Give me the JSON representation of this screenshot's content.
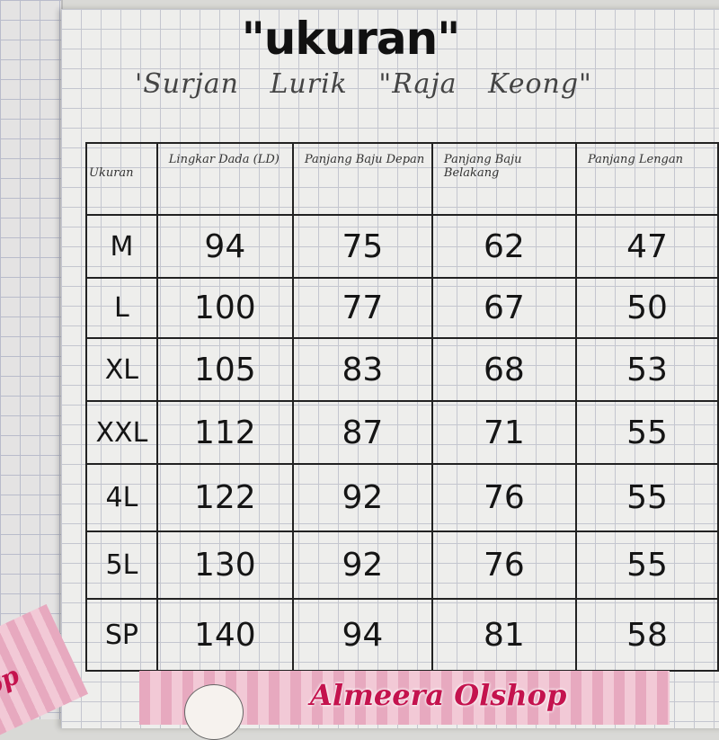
{
  "title": "\"ukuran\"",
  "subtitle": "'Surjan Lurik \"Raja Keong\"",
  "table": {
    "headers": [
      "Ukuran",
      "Lingkar Dada (LD)",
      "Panjang Baju Depan",
      "Panjang Baju Belakang",
      "Panjang Lengan"
    ],
    "rows": [
      [
        "M",
        "94",
        "75",
        "62",
        "47"
      ],
      [
        "L",
        "100",
        "77",
        "67",
        "50"
      ],
      [
        "XL",
        "105",
        "83",
        "68",
        "53"
      ],
      [
        "XXL",
        "112",
        "87",
        "71",
        "55"
      ],
      [
        "4L",
        "122",
        "92",
        "76",
        "55"
      ],
      [
        "5L",
        "130",
        "92",
        "76",
        "55"
      ],
      [
        "SP",
        "140",
        "94",
        "81",
        "58"
      ]
    ]
  },
  "banner": {
    "logo_text": "Almeera",
    "brand": "Almeera Olshop",
    "tag_text": "op"
  },
  "colors": {
    "brand": "#c4134e",
    "stripe_pink": "#e7a9bf"
  }
}
